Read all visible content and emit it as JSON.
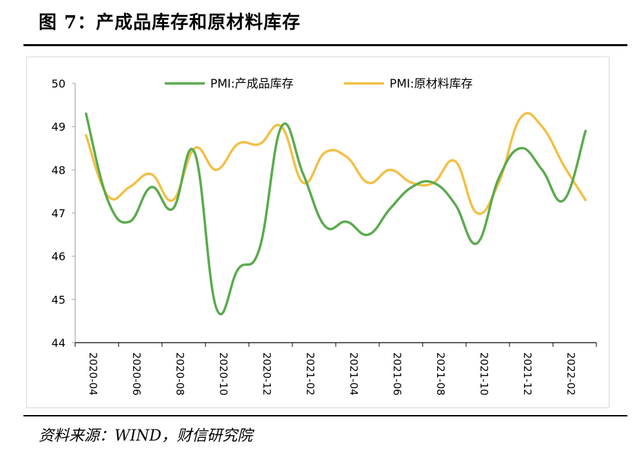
{
  "figure": {
    "title": "图 7：产成品库存和原材料库存",
    "source": "资料来源：WIND，财信研究院"
  },
  "chart_data": {
    "type": "line",
    "title": "图 7：产成品库存和原材料库存",
    "xlabel": "",
    "ylabel": "",
    "ylim": [
      44,
      50
    ],
    "yticks": [
      44,
      45,
      46,
      47,
      48,
      49,
      50
    ],
    "legend_position": "top",
    "x": [
      "2020-04",
      "2020-05",
      "2020-06",
      "2020-07",
      "2020-08",
      "2020-09",
      "2020-10",
      "2020-11",
      "2020-12",
      "2021-01",
      "2021-02",
      "2021-03",
      "2021-04",
      "2021-05",
      "2021-06",
      "2021-07",
      "2021-08",
      "2021-09",
      "2021-10",
      "2021-11",
      "2021-12",
      "2022-01",
      "2022-02",
      "2022-03"
    ],
    "xtick_labels": [
      "2020-04",
      "2020-06",
      "2020-08",
      "2020-10",
      "2020-12",
      "2021-02",
      "2021-04",
      "2021-06",
      "2021-08",
      "2021-10",
      "2021-12",
      "2022-02"
    ],
    "series": [
      {
        "name": "PMI:产成品库存",
        "color": "#5aaa4d",
        "values": [
          49.3,
          47.3,
          46.8,
          47.6,
          47.1,
          48.4,
          44.8,
          45.7,
          46.2,
          49.0,
          47.9,
          46.7,
          46.8,
          46.5,
          47.1,
          47.6,
          47.7,
          47.2,
          46.3,
          47.8,
          48.5,
          48.0,
          47.3,
          48.9
        ]
      },
      {
        "name": "PMI:原材料库存",
        "color": "#f2c045",
        "values": [
          48.8,
          47.4,
          47.6,
          47.9,
          47.3,
          48.5,
          48.0,
          48.6,
          48.6,
          49.0,
          47.7,
          48.4,
          48.3,
          47.7,
          48.0,
          47.7,
          47.7,
          48.2,
          47.0,
          47.7,
          49.2,
          49.0,
          48.1,
          47.3
        ]
      }
    ]
  }
}
